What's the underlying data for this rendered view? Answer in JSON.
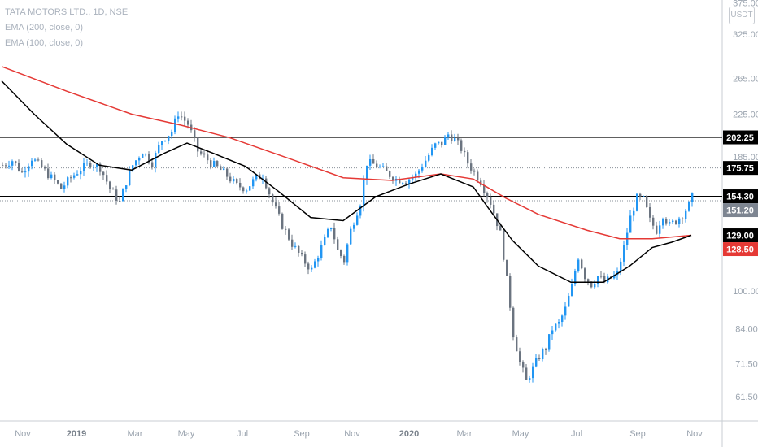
{
  "legend": {
    "symbol": "TATA MOTORS LTD., 1D, NSE",
    "ema200": "EMA (200, close, 0)",
    "ema100": "EMA (100, close, 0)"
  },
  "unit": "USDT",
  "colors": {
    "up": "#2196f3",
    "down": "#6b7480",
    "ema200": "#e53935",
    "ema100": "#000000",
    "price_badge": "#7d8591"
  },
  "chart_data": {
    "type": "candlestick",
    "scale": "log",
    "x_ticks": [
      "Nov",
      "2019",
      "Mar",
      "May",
      "Jul",
      "Sep",
      "Nov",
      "2020",
      "Mar",
      "May",
      "Jul",
      "Sep",
      "Nov"
    ],
    "y_ticks": [
      "375.00",
      "325.00",
      "265.00",
      "225.00",
      "185.00",
      "100.00",
      "84.00",
      "71.50",
      "61.50"
    ],
    "ylim": [
      55,
      380
    ],
    "price_path": [
      [
        0,
        178
      ],
      [
        3,
        182
      ],
      [
        6,
        172
      ],
      [
        9,
        184
      ],
      [
        12,
        176
      ],
      [
        15,
        168
      ],
      [
        18,
        160
      ],
      [
        21,
        168
      ],
      [
        24,
        175
      ],
      [
        27,
        180
      ],
      [
        30,
        176
      ],
      [
        33,
        160
      ],
      [
        36,
        150
      ],
      [
        38,
        165
      ],
      [
        40,
        178
      ],
      [
        43,
        190
      ],
      [
        46,
        180
      ],
      [
        49,
        200
      ],
      [
        52,
        208
      ],
      [
        54,
        226
      ],
      [
        57,
        215
      ],
      [
        60,
        190
      ],
      [
        64,
        180
      ],
      [
        68,
        172
      ],
      [
        72,
        162
      ],
      [
        75,
        160
      ],
      [
        78,
        168
      ],
      [
        80,
        170
      ],
      [
        83,
        150
      ],
      [
        86,
        135
      ],
      [
        89,
        124
      ],
      [
        92,
        116
      ],
      [
        95,
        110
      ],
      [
        98,
        122
      ],
      [
        101,
        135
      ],
      [
        103,
        120
      ],
      [
        105,
        115
      ],
      [
        107,
        132
      ],
      [
        110,
        150
      ],
      [
        112,
        180
      ],
      [
        115,
        178
      ],
      [
        118,
        172
      ],
      [
        121,
        167
      ],
      [
        124,
        166
      ],
      [
        127,
        170
      ],
      [
        130,
        182
      ],
      [
        133,
        195
      ],
      [
        135,
        197
      ],
      [
        137,
        205
      ],
      [
        139,
        200
      ],
      [
        141,
        192
      ],
      [
        143,
        180
      ],
      [
        145,
        172
      ],
      [
        147,
        165
      ],
      [
        150,
        150
      ],
      [
        153,
        130
      ],
      [
        155,
        105
      ],
      [
        157,
        82
      ],
      [
        159,
        72
      ],
      [
        161,
        66
      ],
      [
        163,
        70
      ],
      [
        165,
        74
      ],
      [
        167,
        77
      ],
      [
        169,
        84
      ],
      [
        171,
        86
      ],
      [
        173,
        92
      ],
      [
        175,
        102
      ],
      [
        177,
        117
      ],
      [
        179,
        107
      ],
      [
        181,
        103
      ],
      [
        183,
        107
      ],
      [
        185,
        104
      ],
      [
        187,
        106
      ],
      [
        189,
        108
      ],
      [
        191,
        122
      ],
      [
        193,
        140
      ],
      [
        195,
        153
      ],
      [
        197,
        152
      ],
      [
        199,
        138
      ],
      [
        201,
        132
      ],
      [
        203,
        142
      ],
      [
        205,
        135
      ],
      [
        207,
        138
      ],
      [
        209,
        142
      ],
      [
        211,
        148
      ],
      [
        212,
        154
      ]
    ],
    "series": [
      {
        "name": "EMA (200, close, 0)",
        "points": [
          [
            0,
            280
          ],
          [
            20,
            250
          ],
          [
            40,
            225
          ],
          [
            55,
            214
          ],
          [
            70,
            202
          ],
          [
            90,
            182
          ],
          [
            105,
            168
          ],
          [
            120,
            166
          ],
          [
            135,
            171
          ],
          [
            145,
            167
          ],
          [
            155,
            153
          ],
          [
            165,
            142
          ],
          [
            180,
            132
          ],
          [
            190,
            127
          ],
          [
            200,
            127
          ],
          [
            212,
            129
          ]
        ]
      },
      {
        "name": "EMA (100, close, 0)",
        "points": [
          [
            0,
            262
          ],
          [
            10,
            225
          ],
          [
            20,
            196
          ],
          [
            30,
            178
          ],
          [
            40,
            174
          ],
          [
            50,
            188
          ],
          [
            57,
            197
          ],
          [
            65,
            188
          ],
          [
            75,
            177
          ],
          [
            85,
            158
          ],
          [
            95,
            140
          ],
          [
            105,
            138
          ],
          [
            115,
            154
          ],
          [
            125,
            163
          ],
          [
            135,
            171
          ],
          [
            145,
            161
          ],
          [
            150,
            145
          ],
          [
            157,
            126
          ],
          [
            165,
            112
          ],
          [
            175,
            104
          ],
          [
            185,
            104
          ],
          [
            193,
            112
          ],
          [
            200,
            122
          ],
          [
            206,
            125
          ],
          [
            212,
            129
          ]
        ]
      }
    ],
    "horizontal_lines": [
      {
        "value": 202.25,
        "label": "202.25",
        "style": "solid"
      },
      {
        "value": 175.75,
        "label": "175.75",
        "style": "dotted"
      },
      {
        "value": 154.3,
        "label": "154.30",
        "style": "solid"
      },
      {
        "value": 151.2,
        "label": "151.20",
        "style": "dotted"
      }
    ],
    "price_badges": [
      {
        "value": 202.25,
        "label": "202.25",
        "kind": "line"
      },
      {
        "value": 175.75,
        "label": "175.75",
        "kind": "line"
      },
      {
        "value": 154.3,
        "label": "154.30",
        "kind": "line"
      },
      {
        "value": 151.2,
        "label": "151.20",
        "kind": "last"
      },
      {
        "value": 129.0,
        "label": "129.00",
        "kind": "ema100"
      },
      {
        "value": 128.5,
        "label": "128.50",
        "kind": "ema200"
      }
    ],
    "grid": false
  }
}
